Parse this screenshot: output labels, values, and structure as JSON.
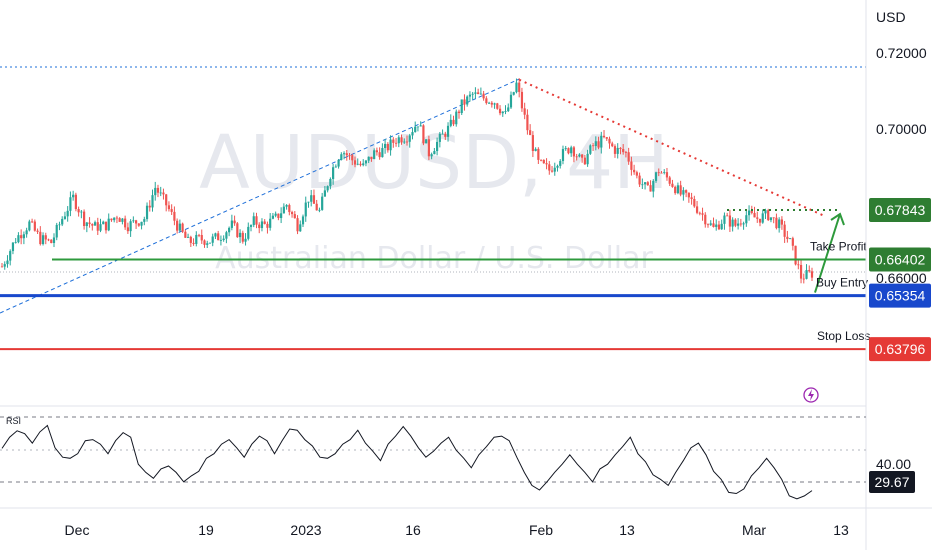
{
  "chart_data": {
    "type": "candlestick",
    "symbol_watermark": "AUDUSD, 4H",
    "symbol_description": "Australian Dollar / U.S. Dollar",
    "currency": "USD",
    "y_ticks": [
      "0.72000",
      "0.70000",
      "0.66000"
    ],
    "ylim": [
      0.629,
      0.7235
    ],
    "x_ticks": [
      "Dec",
      "19",
      "2023",
      "16",
      "Feb",
      "13",
      "Mar",
      "13"
    ],
    "price_path": [
      [
        0,
        0.662
      ],
      [
        5,
        0.67
      ],
      [
        10,
        0.6745
      ],
      [
        14,
        0.67
      ],
      [
        18,
        0.669
      ],
      [
        22,
        0.676
      ],
      [
        26,
        0.682
      ],
      [
        30,
        0.6755
      ],
      [
        34,
        0.6735
      ],
      [
        38,
        0.674
      ],
      [
        42,
        0.677
      ],
      [
        46,
        0.674
      ],
      [
        52,
        0.676
      ],
      [
        56,
        0.685
      ],
      [
        60,
        0.68
      ],
      [
        64,
        0.674
      ],
      [
        68,
        0.669
      ],
      [
        72,
        0.67
      ],
      [
        76,
        0.6695
      ],
      [
        80,
        0.671
      ],
      [
        84,
        0.674
      ],
      [
        88,
        0.67
      ],
      [
        92,
        0.675
      ],
      [
        96,
        0.674
      ],
      [
        100,
        0.676
      ],
      [
        104,
        0.68
      ],
      [
        108,
        0.674
      ],
      [
        112,
        0.682
      ],
      [
        116,
        0.678
      ],
      [
        120,
        0.689
      ],
      [
        124,
        0.696
      ],
      [
        128,
        0.693
      ],
      [
        132,
        0.691
      ],
      [
        136,
        0.695
      ],
      [
        140,
        0.696
      ],
      [
        144,
        0.699
      ],
      [
        148,
        0.7
      ],
      [
        152,
        0.704
      ],
      [
        156,
        0.695
      ],
      [
        160,
        0.699
      ],
      [
        164,
        0.703
      ],
      [
        168,
        0.709
      ],
      [
        172,
        0.712
      ],
      [
        176,
        0.711
      ],
      [
        180,
        0.71
      ],
      [
        184,
        0.706
      ],
      [
        188,
        0.715
      ],
      [
        192,
        0.702
      ],
      [
        196,
        0.692
      ],
      [
        200,
        0.69
      ],
      [
        204,
        0.694
      ],
      [
        208,
        0.697
      ],
      [
        212,
        0.692
      ],
      [
        216,
        0.697
      ],
      [
        220,
        0.699
      ],
      [
        224,
        0.696
      ],
      [
        228,
        0.695
      ],
      [
        232,
        0.688
      ],
      [
        236,
        0.684
      ],
      [
        240,
        0.69
      ],
      [
        244,
        0.687
      ],
      [
        248,
        0.683
      ],
      [
        252,
        0.681
      ],
      [
        256,
        0.677
      ],
      [
        260,
        0.673
      ],
      [
        264,
        0.676
      ],
      [
        268,
        0.674
      ],
      [
        272,
        0.677
      ],
      [
        276,
        0.676
      ],
      [
        280,
        0.677
      ],
      [
        284,
        0.674
      ],
      [
        288,
        0.669
      ],
      [
        292,
        0.659
      ],
      [
        296,
        0.66
      ]
    ],
    "rsi_label": "RSI",
    "rsi_levels": {
      "upper": 70,
      "middle": 50,
      "lower": 30
    },
    "rsi_ylim": [
      25,
      75
    ],
    "rsi_tick": "40.00",
    "rsi_current": "29.67",
    "rsi_values": [
      55,
      60,
      65,
      62,
      58,
      63,
      68,
      54,
      50,
      48,
      52,
      58,
      60,
      56,
      52,
      58,
      64,
      60,
      46,
      40,
      38,
      42,
      45,
      40,
      36,
      38,
      42,
      48,
      52,
      56,
      60,
      54,
      50,
      56,
      62,
      58,
      52,
      58,
      66,
      64,
      60,
      55,
      50,
      48,
      52,
      56,
      60,
      64,
      58,
      52,
      48,
      56,
      62,
      66,
      62,
      54,
      50,
      52,
      58,
      60,
      54,
      48,
      44,
      50,
      56,
      60,
      62,
      58,
      50,
      40,
      34,
      30,
      36,
      40,
      46,
      50,
      46,
      40,
      36,
      42,
      46,
      50,
      56,
      60,
      52,
      46,
      40,
      36,
      34,
      40,
      48,
      54,
      58,
      50,
      42,
      36,
      30,
      28,
      32,
      38,
      44,
      48,
      44,
      36,
      28,
      25,
      28,
      29.67
    ]
  },
  "levels": {
    "take_profit": {
      "label": "Take Profit",
      "price": "0.67843",
      "value": 0.67843,
      "color": "#2e7d32"
    },
    "resistance": {
      "price": "0.66402",
      "value": 0.66402,
      "color": "#2e7d32"
    },
    "buy_entry": {
      "label": "Buy Entry",
      "price": "0.65354",
      "value": 0.65354,
      "color": "#1848cc"
    },
    "stop_loss": {
      "label": "Stop Loss",
      "price": "0.63796",
      "value": 0.63796,
      "color": "#e53935"
    }
  },
  "colors": {
    "up": "#26a69a",
    "down": "#ef5350",
    "trend_dotted": "#1e6fd9",
    "downtrend": "#e53935",
    "alert_icon": "#9c27b0"
  },
  "icons": {
    "alert": "lightning-icon"
  }
}
